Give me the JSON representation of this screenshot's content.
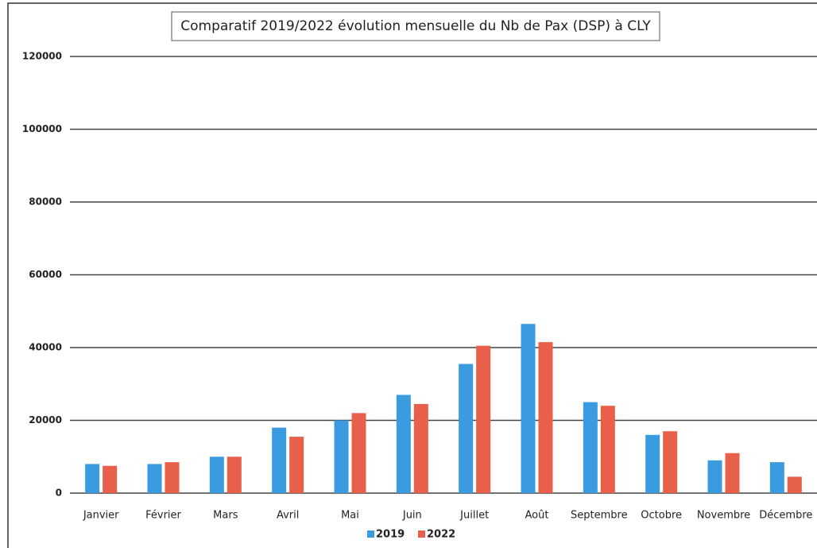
{
  "chart_data": {
    "type": "bar",
    "title": "Comparatif 2019/2022 évolution mensuelle du Nb de Pax (DSP) à CLY",
    "categories": [
      "Janvier",
      "Février",
      "Mars",
      "Avril",
      "Mai",
      "Juin",
      "Juillet",
      "Août",
      "Septembre",
      "Octobre",
      "Novembre",
      "Décembre"
    ],
    "series": [
      {
        "name": "2019",
        "color": "#3a9be0",
        "values": [
          8000,
          8000,
          10000,
          18000,
          20000,
          27000,
          35500,
          46500,
          25000,
          16000,
          9000,
          8500
        ]
      },
      {
        "name": "2022",
        "color": "#e8604a",
        "values": [
          7500,
          8500,
          10000,
          15500,
          22000,
          24500,
          40500,
          41500,
          24000,
          17000,
          11000,
          4500
        ]
      }
    ],
    "ylim": [
      0,
      120000
    ],
    "yticks": [
      0,
      20000,
      40000,
      60000,
      80000,
      100000,
      120000
    ],
    "grid": true,
    "legend": "bottom"
  }
}
